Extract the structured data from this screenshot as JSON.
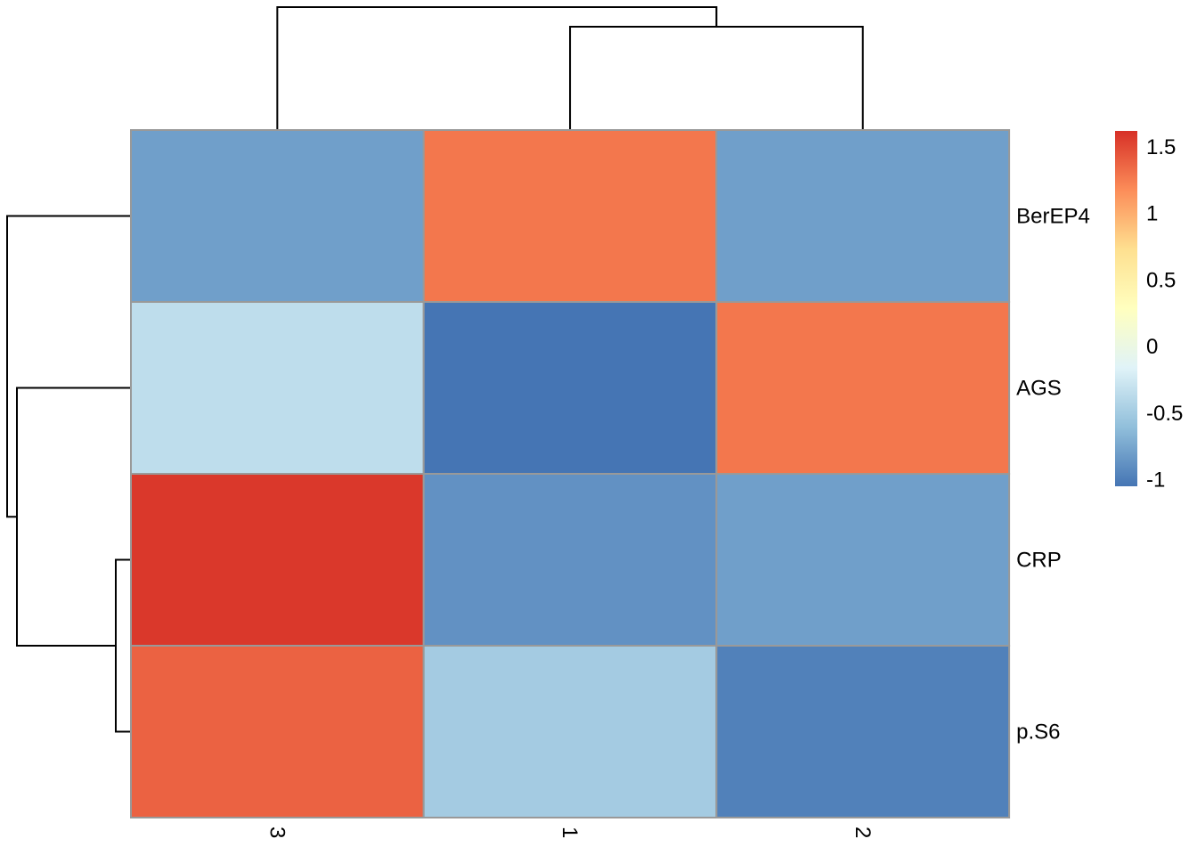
{
  "chart_data": {
    "type": "heatmap",
    "title": "",
    "xlabel": "",
    "ylabel": "",
    "columns": [
      "3",
      "1",
      "2"
    ],
    "rows": [
      "BerEP4",
      "AGS",
      "CRP",
      "p.S6"
    ],
    "values": [
      [
        -0.8,
        1.28,
        -0.8
      ],
      [
        -0.35,
        -1.05,
        1.28
      ],
      [
        1.58,
        -0.88,
        -0.8
      ],
      [
        1.38,
        -0.5,
        -0.98
      ]
    ],
    "colorbar": {
      "min": -1.05,
      "max": 1.62,
      "ticks": [
        1.5,
        1,
        0.5,
        0,
        -0.5,
        -1
      ],
      "tick_labels": [
        "1.5",
        "1",
        "0.5",
        "0",
        "-0.5",
        "-1"
      ],
      "colors": [
        "#4575b4",
        "#91bfdb",
        "#e0f3f8",
        "#ffffbf",
        "#fee090",
        "#fc8d59",
        "#d73027"
      ]
    },
    "cell_border_color": "#999999",
    "column_dendrogram": "3 | (1, 2)",
    "row_dendrogram": "BerEP4 | (AGS | (CRP, p.S6))"
  }
}
